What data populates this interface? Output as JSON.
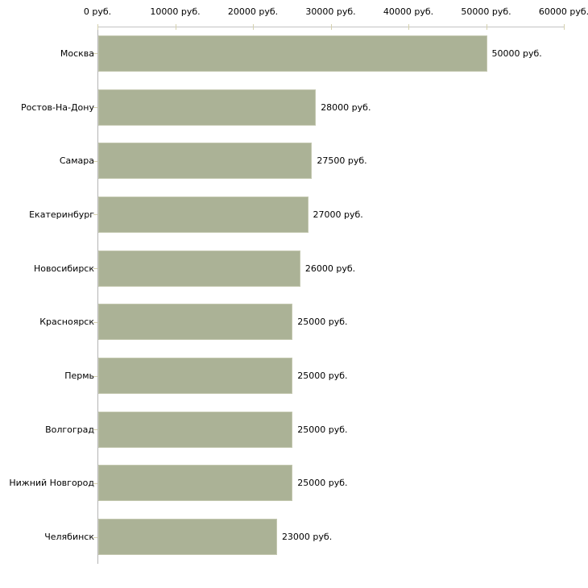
{
  "chart_data": {
    "type": "bar",
    "orientation": "horizontal",
    "title": "",
    "xlabel": "",
    "ylabel": "",
    "grid": false,
    "legend": null,
    "xlim": [
      0,
      60000
    ],
    "x_ticks": [
      0,
      10000,
      20000,
      30000,
      40000,
      50000,
      60000
    ],
    "x_tick_labels": [
      "0 руб.",
      "10000 руб.",
      "20000 руб.",
      "30000 руб.",
      "40000 руб.",
      "50000 руб.",
      "60000 руб."
    ],
    "categories": [
      "Москва",
      "Ростов-На-Дону",
      "Самара",
      "Екатеринбург",
      "Новосибирск",
      "Красноярск",
      "Пермь",
      "Волгоград",
      "Нижний Новгород",
      "Челябинск"
    ],
    "values": [
      50000,
      28000,
      27500,
      27000,
      26000,
      25000,
      25000,
      25000,
      25000,
      23000
    ],
    "value_labels": [
      "50000 руб.",
      "28000 руб.",
      "27500 руб.",
      "27000 руб.",
      "26000 руб.",
      "25000 руб.",
      "25000 руб.",
      "25000 руб.",
      "25000 руб.",
      "23000 руб."
    ],
    "colors": {
      "bar_fill": "#abb296",
      "bar_border": "#c3c7af",
      "axis_line_horizontal": "#c2c2c2",
      "axis_line_vertical": "#b5b5b5",
      "tick_mark": "#d5d1ae",
      "text": "#000000",
      "background": "#ffffff"
    }
  }
}
